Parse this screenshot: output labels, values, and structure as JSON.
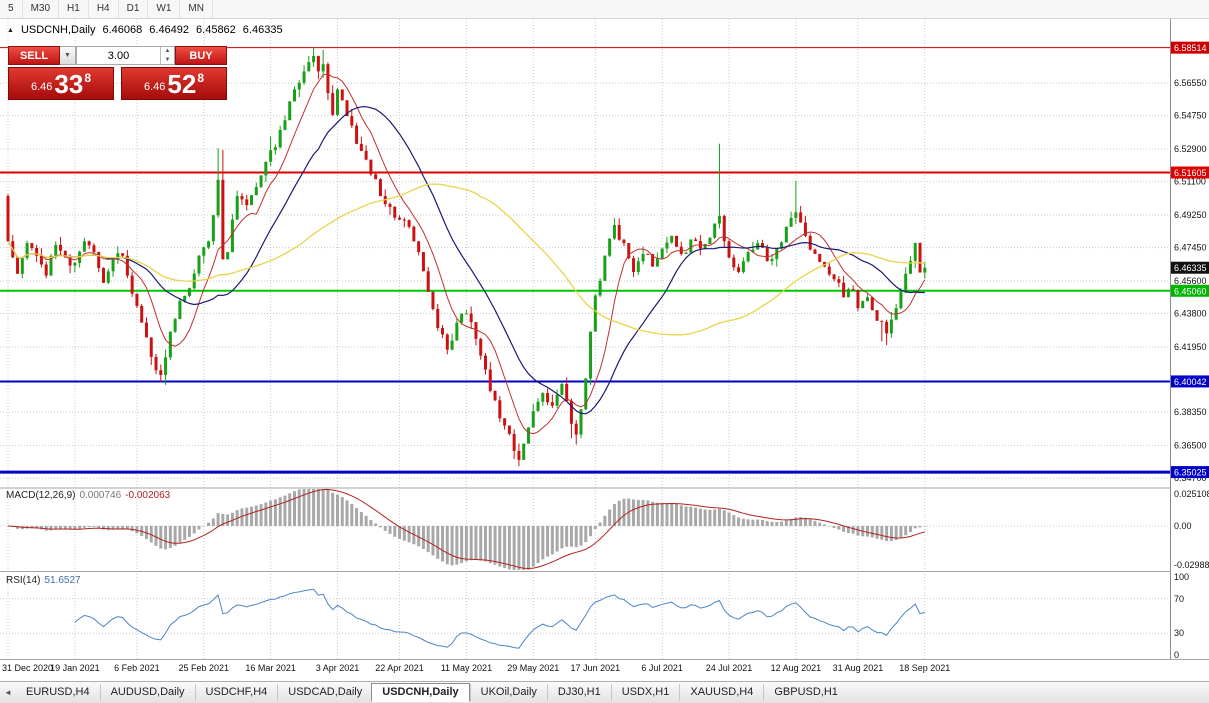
{
  "icons": {
    "collapse": "▲",
    "chevron_down": "▼",
    "step_up": "▲",
    "step_down": "▼",
    "scroll_left": "◄"
  },
  "toolbar": {
    "periods": [
      "5",
      "M30",
      "H1",
      "H4",
      "D1",
      "W1",
      "MN"
    ]
  },
  "quote_line": {
    "symbol": "USDCNH,Daily",
    "open": "6.46068",
    "high": "6.46492",
    "low": "6.45862",
    "close": "6.46335"
  },
  "trade_panel": {
    "sell_label": "SELL",
    "buy_label": "BUY",
    "volume": "3.00",
    "sell_price": {
      "prefix": "6.46",
      "big": "33",
      "sup": "8"
    },
    "buy_price": {
      "prefix": "6.46",
      "big": "52",
      "sup": "8"
    }
  },
  "tabs": {
    "items": [
      "EURUSD,H4",
      "AUDUSD,Daily",
      "USDCHF,H4",
      "USDCAD,Daily",
      "USDCNH,Daily",
      "UKOil,Daily",
      "DJ30,H1",
      "USDX,H1",
      "XAUUSD,H4",
      "GBPUSD,H1"
    ],
    "active_index": 4
  },
  "chart_data": {
    "type": "candlestick",
    "symbol": "USDCNH",
    "timeframe": "Daily",
    "ohlc": {
      "open": 6.46068,
      "high": 6.46492,
      "low": 6.45862,
      "close": 6.46335
    },
    "y_axis": {
      "min": 6.342,
      "max": 6.601,
      "tick_values": [
        6.5655,
        6.5475,
        6.529,
        6.511,
        6.4925,
        6.4745,
        6.456,
        6.438,
        6.4195,
        6.3835,
        6.365,
        6.347
      ],
      "tick_labels": [
        "6.56550",
        "6.54750",
        "6.52900",
        "6.51100",
        "6.49250",
        "6.47450",
        "6.45600",
        "6.43800",
        "6.41950",
        "6.38350",
        "6.36500",
        "6.34700"
      ]
    },
    "levels": [
      {
        "price": 6.58514,
        "color": "#CC0000",
        "width": 1,
        "label": "6.58514",
        "badge_bg": "#CC0000"
      },
      {
        "price": 6.51605,
        "color": "#DD0000",
        "width": 2,
        "label": "6.51605",
        "badge_bg": "#DD0000"
      },
      {
        "price": 6.4506,
        "color": "#00C800",
        "width": 2,
        "label": "6.45060",
        "badge_bg": "#00B400"
      },
      {
        "price": 6.40042,
        "color": "#0000C8",
        "width": 2,
        "label": "6.40042",
        "badge_bg": "#0000C8"
      },
      {
        "price": 6.35025,
        "color": "#0000C8",
        "width": 3,
        "label": "6.35025",
        "badge_bg": "#0000C8"
      }
    ],
    "current_price": {
      "value": 6.46335,
      "label": "6.46335",
      "bg": "#111111"
    },
    "x_axis": {
      "tick_indices": [
        0,
        14,
        27,
        41,
        55,
        69,
        82,
        96,
        110,
        123,
        137,
        151,
        165,
        178,
        192
      ],
      "tick_labels": [
        "31 Dec 2020",
        "19 Jan 2021",
        "6 Feb 2021",
        "25 Feb 2021",
        "16 Mar 2021",
        "3 Apr 2021",
        "22 Apr 2021",
        "11 May 2021",
        "29 May 2021",
        "17 Jun 2021",
        "6 Jul 2021",
        "24 Jul 2021",
        "12 Aug 2021",
        "31 Aug 2021",
        "18 Sep 2021"
      ]
    },
    "candles": {
      "count": 193,
      "open_first": 6.503,
      "noise": 0.0035,
      "wick": 0.0045,
      "seed": 11,
      "up_color": "#18A018",
      "down_color": "#CC1111",
      "anchors": [
        [
          0,
          6.478
        ],
        [
          2,
          6.46
        ],
        [
          4,
          6.477
        ],
        [
          6,
          6.47
        ],
        [
          8,
          6.459
        ],
        [
          10,
          6.476
        ],
        [
          12,
          6.469
        ],
        [
          14,
          6.466
        ],
        [
          16,
          6.478
        ],
        [
          18,
          6.472
        ],
        [
          20,
          6.455
        ],
        [
          22,
          6.468
        ],
        [
          24,
          6.47
        ],
        [
          26,
          6.449
        ],
        [
          28,
          6.433
        ],
        [
          30,
          6.414
        ],
        [
          32,
          6.404
        ],
        [
          34,
          6.428
        ],
        [
          36,
          6.445
        ],
        [
          38,
          6.452
        ],
        [
          40,
          6.47
        ],
        [
          42,
          6.478
        ],
        [
          44,
          6.512
        ],
        [
          45,
          6.468
        ],
        [
          46,
          6.472
        ],
        [
          47,
          6.49
        ],
        [
          48,
          6.503
        ],
        [
          50,
          6.498
        ],
        [
          52,
          6.508
        ],
        [
          54,
          6.522
        ],
        [
          56,
          6.53
        ],
        [
          58,
          6.545
        ],
        [
          60,
          6.562
        ],
        [
          62,
          6.572
        ],
        [
          64,
          6.5805
        ],
        [
          65,
          6.572
        ],
        [
          66,
          6.576
        ],
        [
          67,
          6.56
        ],
        [
          68,
          6.548
        ],
        [
          69,
          6.562
        ],
        [
          70,
          6.556
        ],
        [
          72,
          6.542
        ],
        [
          74,
          6.528
        ],
        [
          76,
          6.515
        ],
        [
          78,
          6.503
        ],
        [
          80,
          6.497
        ],
        [
          82,
          6.49
        ],
        [
          84,
          6.486
        ],
        [
          86,
          6.472
        ],
        [
          88,
          6.45
        ],
        [
          90,
          6.43
        ],
        [
          92,
          6.418
        ],
        [
          94,
          6.433
        ],
        [
          96,
          6.438
        ],
        [
          98,
          6.424
        ],
        [
          100,
          6.407
        ],
        [
          102,
          6.39
        ],
        [
          104,
          6.376
        ],
        [
          106,
          6.362
        ],
        [
          107,
          6.357
        ],
        [
          108,
          6.366
        ],
        [
          110,
          6.384
        ],
        [
          112,
          6.394
        ],
        [
          114,
          6.387
        ],
        [
          116,
          6.399
        ],
        [
          118,
          6.377
        ],
        [
          119,
          6.371
        ],
        [
          120,
          6.385
        ],
        [
          121,
          6.402
        ],
        [
          122,
          6.428
        ],
        [
          123,
          6.448
        ],
        [
          125,
          6.47
        ],
        [
          127,
          6.487
        ],
        [
          129,
          6.477
        ],
        [
          131,
          6.461
        ],
        [
          133,
          6.471
        ],
        [
          135,
          6.464
        ],
        [
          137,
          6.474
        ],
        [
          139,
          6.481
        ],
        [
          141,
          6.471
        ],
        [
          143,
          6.479
        ],
        [
          145,
          6.474
        ],
        [
          147,
          6.48
        ],
        [
          149,
          6.492
        ],
        [
          150,
          6.478
        ],
        [
          151,
          6.469
        ],
        [
          153,
          6.461
        ],
        [
          155,
          6.472
        ],
        [
          157,
          6.477
        ],
        [
          159,
          6.467
        ],
        [
          161,
          6.474
        ],
        [
          163,
          6.486
        ],
        [
          165,
          6.494
        ],
        [
          167,
          6.481
        ],
        [
          169,
          6.471
        ],
        [
          171,
          6.464
        ],
        [
          173,
          6.457
        ],
        [
          175,
          6.447
        ],
        [
          177,
          6.451
        ],
        [
          178,
          6.441
        ],
        [
          180,
          6.447
        ],
        [
          182,
          6.434
        ],
        [
          184,
          6.427
        ],
        [
          186,
          6.441
        ],
        [
          188,
          6.46
        ],
        [
          190,
          6.477
        ],
        [
          191,
          6.4607
        ],
        [
          192,
          6.46335
        ]
      ],
      "spike_highs": [
        [
          44,
          6.5295
        ],
        [
          45,
          6.5285
        ],
        [
          55,
          6.536
        ],
        [
          64,
          6.5851
        ],
        [
          66,
          6.584
        ],
        [
          149,
          6.532
        ],
        [
          165,
          6.5115
        ]
      ],
      "spike_lows": [
        [
          32,
          6.4005
        ],
        [
          33,
          6.3985
        ],
        [
          106,
          6.3575
        ],
        [
          107,
          6.3535
        ],
        [
          108,
          6.36
        ],
        [
          118,
          6.369
        ],
        [
          119,
          6.3655
        ],
        [
          183,
          6.4225
        ],
        [
          184,
          6.4205
        ]
      ]
    },
    "moving_averages": [
      {
        "period": 8,
        "color": "#C23030",
        "width": 1
      },
      {
        "period": 21,
        "color": "#1A1A70",
        "width": 1.2
      },
      {
        "period": 55,
        "color": "#E8D44A",
        "width": 1.3
      }
    ],
    "macd": {
      "label": "MACD(12,26,9)",
      "value1": "0.000746",
      "value2": "-0.002063",
      "fast": 12,
      "slow": 26,
      "signal_period": 9,
      "range": [
        -0.0299,
        0.0251
      ],
      "axis_labels": [
        "0.025108",
        "0.00",
        "-0.02988"
      ],
      "histogram_color": "#A8A8A8",
      "signal_color": "#B22222"
    },
    "rsi": {
      "label": "RSI(14)",
      "value": "51.6527",
      "period": 14,
      "range": [
        0,
        100
      ],
      "guide_levels": [
        70,
        30
      ],
      "axis_labels": [
        "100",
        "70",
        "30",
        "0"
      ],
      "line_color": "#4A86C8"
    }
  }
}
